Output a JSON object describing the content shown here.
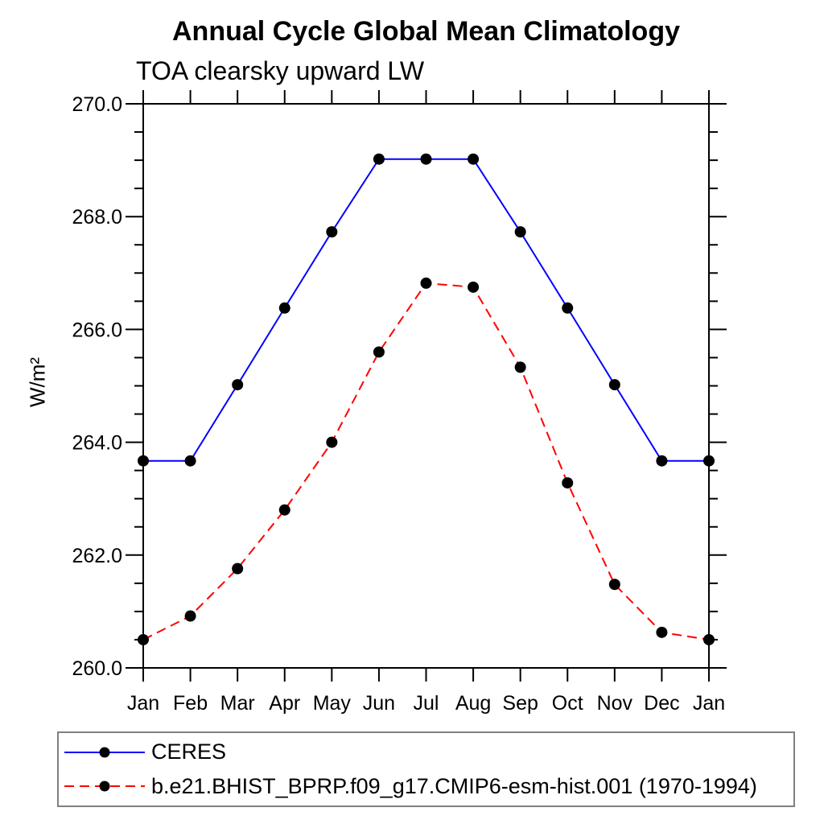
{
  "page": {
    "background": "#ffffff"
  },
  "chart_data": {
    "type": "line",
    "title": "Annual Cycle Global Mean Climatology",
    "subtitle": "TOA clearsky upward LW",
    "ylabel": "W/m²",
    "xlabel": "",
    "x_categories": [
      "Jan",
      "Feb",
      "Mar",
      "Apr",
      "May",
      "Jun",
      "Jul",
      "Aug",
      "Sep",
      "Oct",
      "Nov",
      "Dec",
      "Jan"
    ],
    "ylim": [
      260.0,
      270.0
    ],
    "y_major_ticks": [
      {
        "value": 260.0,
        "label": "260.0"
      },
      {
        "value": 262.0,
        "label": "262.0"
      },
      {
        "value": 264.0,
        "label": "264.0"
      },
      {
        "value": 266.0,
        "label": "266.0"
      },
      {
        "value": 268.0,
        "label": "268.0"
      },
      {
        "value": 270.0,
        "label": "270.0"
      }
    ],
    "y_minor_step": 0.5,
    "grid": false,
    "axis_color": "#000000",
    "text_color": "#000000",
    "legend_position": "below-plot-left",
    "legend_border_color": "#808080",
    "marker": "filled-circle",
    "marker_color": "#000000",
    "series": [
      {
        "name": "CERES",
        "color": "#0000ff",
        "line_style": "solid",
        "values": [
          263.67,
          263.67,
          265.02,
          266.38,
          267.73,
          269.02,
          269.02,
          269.02,
          267.73,
          266.38,
          265.02,
          263.67,
          263.67
        ]
      },
      {
        "name": "b.e21.BHIST_BPRP.f09_g17.CMIP6-esm-hist.001 (1970-1994)",
        "color": "#ff0000",
        "line_style": "dashed",
        "values": [
          260.5,
          260.92,
          261.76,
          262.8,
          264.0,
          265.6,
          266.82,
          266.75,
          265.33,
          263.28,
          261.48,
          260.63,
          260.5
        ]
      }
    ]
  }
}
